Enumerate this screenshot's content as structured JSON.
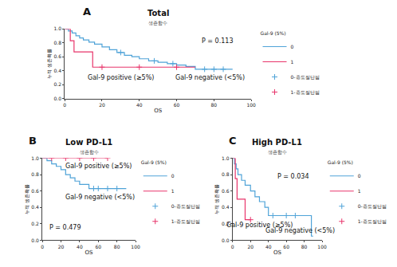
{
  "chart_data": [
    {
      "type": "line",
      "title": "Total",
      "subtitle": "생존함수",
      "x_label": "OS",
      "y_label": "누적 생존확률",
      "legend": "right",
      "legend_title": "Gal-9 (5%)",
      "grid": false,
      "xlim": [
        0,
        100
      ],
      "xticks": [
        0,
        20,
        40,
        60,
        80,
        100
      ],
      "ylim": [
        0,
        1
      ],
      "yticks": [
        {
          "value": 0,
          "label": "0.0"
        },
        0.2,
        0.4,
        0.6,
        0.8,
        {
          "value": 1,
          "label": "1.0"
        }
      ],
      "annotations": [
        "A",
        "P = 0.113",
        "Gal-9 positive (≥5%)",
        "Gal-9 negative (<5%)"
      ],
      "series": [
        {
          "name": "0",
          "color": "#4fa3d8",
          "line_style": "step",
          "x": [
            0,
            2,
            4,
            6,
            8,
            10,
            13,
            16,
            20,
            24,
            28,
            32,
            36,
            40,
            45,
            50,
            55,
            60,
            65,
            70,
            90
          ],
          "values": [
            1,
            0.97,
            0.94,
            0.9,
            0.87,
            0.84,
            0.81,
            0.78,
            0.74,
            0.7,
            0.66,
            0.62,
            0.6,
            0.57,
            0.54,
            0.52,
            0.5,
            0.48,
            0.46,
            0.42,
            0.42
          ]
        },
        {
          "name": "1",
          "color": "#e8356b",
          "line_style": "step",
          "x": [
            0,
            3,
            5,
            15,
            70
          ],
          "values": [
            1,
            0.83,
            0.67,
            0.45,
            0.45
          ]
        },
        {
          "name": "0-중도절단됨",
          "color": "#4fa3d8",
          "type": "scatter",
          "marker": "cross",
          "x": [
            30,
            48,
            58,
            75,
            80,
            85
          ],
          "values": [
            0.66,
            0.54,
            0.5,
            0.42,
            0.42,
            0.42
          ]
        },
        {
          "name": "1-중도절단됨",
          "color": "#e8356b",
          "type": "scatter",
          "marker": "cross",
          "x": [
            20,
            40,
            60
          ],
          "values": [
            0.45,
            0.45,
            0.45
          ]
        }
      ]
    },
    {
      "type": "line",
      "title": "Low PD-L1",
      "subtitle": "생존함수",
      "x_label": "OS",
      "y_label": "누적 생존확률",
      "legend": "right",
      "legend_title": "Gal-9 (5%)",
      "grid": false,
      "xlim": [
        0,
        100
      ],
      "xticks": [
        0,
        20,
        40,
        60,
        80,
        100
      ],
      "ylim": [
        0,
        1
      ],
      "yticks": [
        {
          "value": 0,
          "label": "0.0"
        },
        0.2,
        0.4,
        0.6,
        0.8,
        {
          "value": 1,
          "label": "1.0"
        }
      ],
      "annotations": [
        "B",
        "Gal-9 positive (≥5%)",
        "Gal-9 negative (<5%)",
        "P = 0.479"
      ],
      "series": [
        {
          "name": "0",
          "color": "#4fa3d8",
          "line_style": "step",
          "x": [
            0,
            5,
            10,
            15,
            20,
            25,
            30,
            35,
            40,
            50,
            90
          ],
          "values": [
            1,
            0.97,
            0.93,
            0.9,
            0.86,
            0.8,
            0.76,
            0.72,
            0.68,
            0.63,
            0.63
          ]
        },
        {
          "name": "1",
          "color": "#e8356b",
          "line_style": "step",
          "x": [
            0,
            70
          ],
          "values": [
            1,
            1
          ]
        },
        {
          "name": "0-중도절단됨",
          "color": "#4fa3d8",
          "type": "scatter",
          "marker": "cross",
          "x": [
            55,
            60,
            70,
            80
          ],
          "values": [
            0.63,
            0.63,
            0.63,
            0.63
          ]
        },
        {
          "name": "1-중도절단됨",
          "color": "#e8356b",
          "type": "scatter",
          "marker": "cross",
          "x": [
            10,
            25,
            40,
            55,
            70
          ],
          "values": [
            1,
            1,
            1,
            1,
            1
          ]
        }
      ]
    },
    {
      "type": "line",
      "title": "High PD-L1",
      "subtitle": "생존함수",
      "x_label": "OS",
      "y_label": "누적 생존확률",
      "legend": "right",
      "legend_title": "Gal-9 (5%)",
      "grid": false,
      "xlim": [
        0,
        100
      ],
      "xticks": [
        0,
        20,
        40,
        60,
        80,
        100
      ],
      "ylim": [
        0,
        1
      ],
      "yticks": [
        {
          "value": 0,
          "label": "0.0"
        },
        0.2,
        0.4,
        0.6,
        0.8,
        {
          "value": 1,
          "label": "1.0"
        }
      ],
      "annotations": [
        "C",
        "P = 0.034",
        "Gal-9 positive (≥5%)",
        "Gal-9 negative (<5%)"
      ],
      "series": [
        {
          "name": "0",
          "color": "#4fa3d8",
          "line_style": "step",
          "x": [
            0,
            2,
            4,
            6,
            10,
            14,
            20,
            25,
            30,
            36,
            40,
            88,
            90
          ],
          "values": [
            1,
            0.93,
            0.87,
            0.8,
            0.73,
            0.67,
            0.6,
            0.53,
            0.47,
            0.4,
            0.3,
            0.05,
            0.05
          ]
        },
        {
          "name": "1",
          "color": "#e8356b",
          "line_style": "step",
          "x": [
            0,
            3,
            5,
            14,
            20
          ],
          "values": [
            1,
            0.75,
            0.5,
            0.25,
            0.25
          ]
        },
        {
          "name": "0-중도절단됨",
          "color": "#4fa3d8",
          "type": "scatter",
          "marker": "cross",
          "x": [
            45,
            60,
            70
          ],
          "values": [
            0.3,
            0.3,
            0.3
          ]
        },
        {
          "name": "1-중도절단됨",
          "color": "#e8356b",
          "type": "scatter",
          "marker": "cross",
          "x": [
            20
          ],
          "values": [
            0.25
          ]
        }
      ]
    }
  ]
}
